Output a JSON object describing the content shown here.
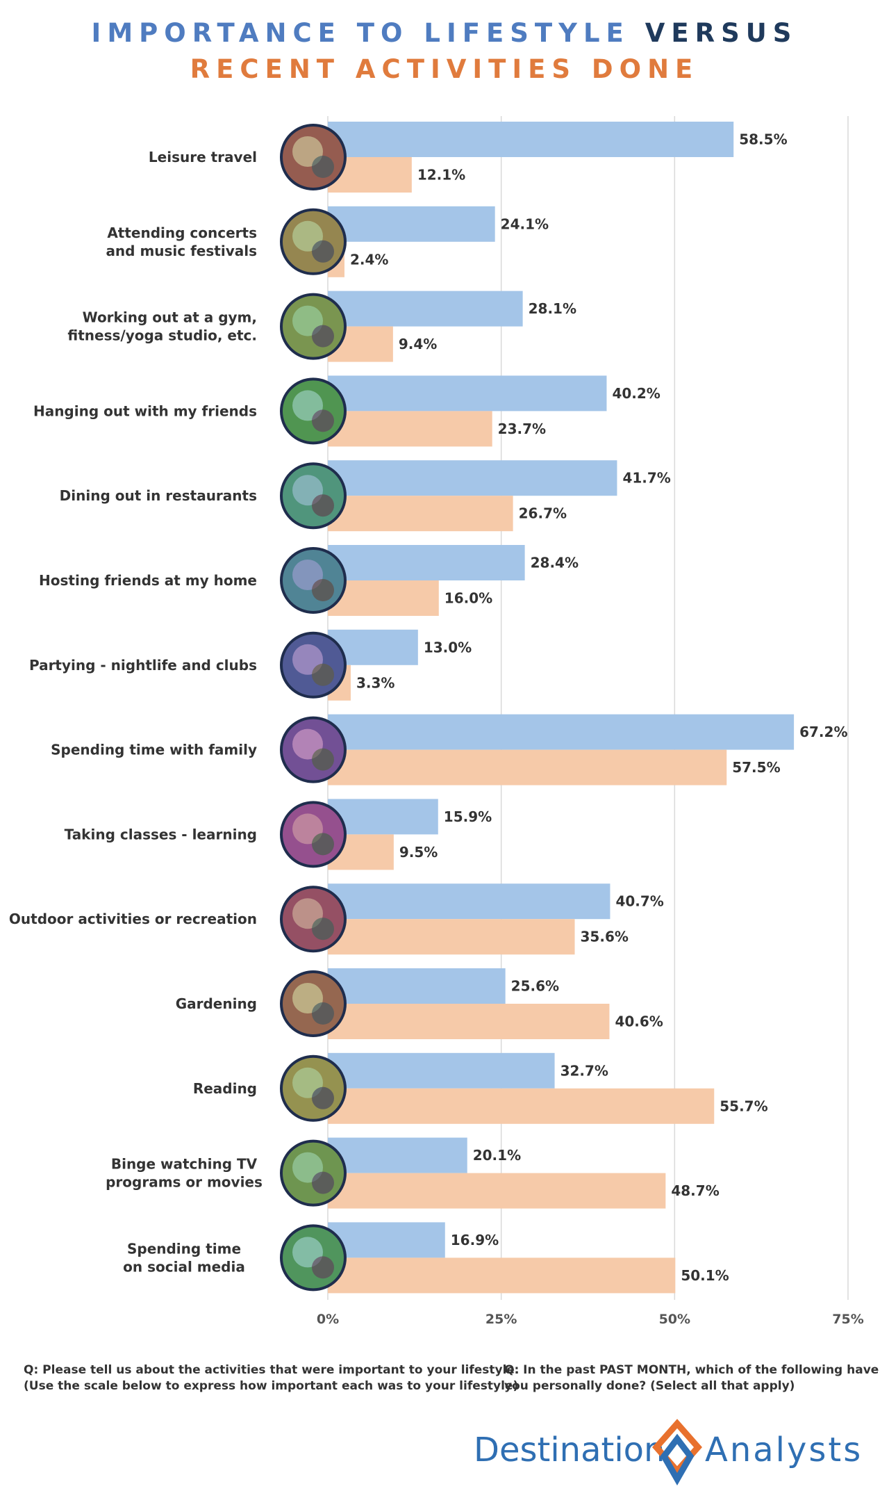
{
  "title": {
    "part1": "IMPORTANCE TO LIFESTYLE",
    "part2": "VERSUS",
    "part3": "RECENT ACTIVITIES DONE"
  },
  "colors": {
    "title_blue": "#4f7cc0",
    "title_navy": "#1f3a5c",
    "title_orange": "#e07b3d",
    "importance_bar": "#a4c5e8",
    "done_bar": "#f6caa9",
    "gridline": "#d9d9d9",
    "logo_blue": "#2f6fb3",
    "logo_orange": "#e8712e"
  },
  "chart_data": {
    "type": "bar",
    "orientation": "horizontal",
    "categories": [
      [
        "Leisure travel"
      ],
      [
        "Attending concerts",
        "and music festivals"
      ],
      [
        "Working out at a gym,",
        "fitness/yoga studio, etc."
      ],
      [
        "Hanging out with my friends"
      ],
      [
        "Dining out in restaurants"
      ],
      [
        "Hosting friends at my home"
      ],
      [
        "Partying - nightlife and clubs"
      ],
      [
        "Spending time with family"
      ],
      [
        "Taking classes - learning"
      ],
      [
        "Outdoor activities or recreation"
      ],
      [
        "Gardening"
      ],
      [
        "Reading"
      ],
      [
        "Binge watching TV",
        "programs or movies"
      ],
      [
        "Spending time",
        "on social media"
      ]
    ],
    "category_icons": [
      "beach-icon",
      "concert-crowd-icon",
      "gym-icon",
      "friends-icon",
      "restaurant-icon",
      "hosting-icon",
      "nightclub-icon",
      "family-icon",
      "classroom-icon",
      "outdoors-icon",
      "seedling-icon",
      "book-icon",
      "tv-remote-icon",
      "smartphone-icon"
    ],
    "series": [
      {
        "values": [
          58.5,
          24.1,
          28.1,
          40.2,
          41.7,
          28.4,
          13.0,
          67.2,
          15.9,
          40.7,
          25.6,
          32.7,
          20.1,
          16.9
        ],
        "labels": [
          "58.5%",
          "24.1%",
          "28.1%",
          "40.2%",
          "41.7%",
          "28.4%",
          "13.0%",
          "67.2%",
          "15.9%",
          "40.7%",
          "25.6%",
          "32.7%",
          "20.1%",
          "16.9%"
        ]
      },
      {
        "values": [
          12.1,
          2.4,
          9.4,
          23.7,
          26.7,
          16.0,
          3.3,
          57.5,
          9.5,
          35.6,
          40.6,
          55.7,
          48.7,
          50.1
        ],
        "labels": [
          "12.1%",
          "2.4%",
          "9.4%",
          "23.7%",
          "26.7%",
          "16.0%",
          "3.3%",
          "57.5%",
          "9.5%",
          "35.6%",
          "40.6%",
          "55.7%",
          "48.7%",
          "50.1%"
        ]
      }
    ],
    "xlim": [
      0,
      75
    ],
    "xticks": [
      0,
      25,
      50,
      75
    ],
    "xtick_labels": [
      "0%",
      "25%",
      "50%",
      "75%"
    ],
    "grid": true,
    "xlabel": "",
    "ylabel": ""
  },
  "notes": {
    "importance": [
      "Q: Please tell us about the activities that were important to your lifestyle.",
      "(Use the scale below to express how important each was to your lifestyle)"
    ],
    "done": [
      "Q: In the past PAST MONTH, which of the following have",
      "you personally done? (Select all that apply)"
    ]
  },
  "logo": {
    "left": "Destination",
    "right": "Analysts"
  }
}
